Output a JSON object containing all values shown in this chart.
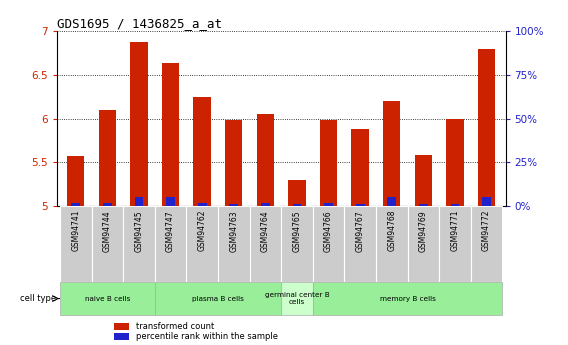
{
  "title": "GDS1695 / 1436825_a_at",
  "samples": [
    "GSM94741",
    "GSM94744",
    "GSM94745",
    "GSM94747",
    "GSM94762",
    "GSM94763",
    "GSM94764",
    "GSM94765",
    "GSM94766",
    "GSM94767",
    "GSM94768",
    "GSM94769",
    "GSM94771",
    "GSM94772"
  ],
  "transformed_count": [
    5.57,
    6.1,
    6.88,
    6.63,
    6.25,
    5.99,
    6.05,
    5.3,
    5.99,
    5.88,
    6.2,
    5.58,
    6.0,
    6.8
  ],
  "percentile_rank": [
    2,
    2,
    5,
    5,
    2,
    1,
    2,
    1,
    2,
    1,
    5,
    1,
    1,
    5
  ],
  "ylim": [
    5.0,
    7.0
  ],
  "yticks": [
    5.0,
    5.5,
    6.0,
    6.5,
    7.0
  ],
  "right_yticks": [
    0,
    25,
    50,
    75,
    100
  ],
  "bar_color_red": "#cc2200",
  "bar_color_blue": "#2222cc",
  "group_info": [
    {
      "label": "naive B cells",
      "start": 0,
      "end": 2,
      "color": "#99ee99"
    },
    {
      "label": "plasma B cells",
      "start": 3,
      "end": 6,
      "color": "#99ee99"
    },
    {
      "label": "germinal center B\ncells",
      "start": 7,
      "end": 7,
      "color": "#ccffcc"
    },
    {
      "label": "memory B cells",
      "start": 8,
      "end": 13,
      "color": "#99ee99"
    }
  ],
  "red_axis_color": "#cc2200",
  "blue_axis_color": "#2222cc",
  "grid_color": "#000000",
  "background_color": "#ffffff",
  "tick_bg_color": "#cccccc"
}
